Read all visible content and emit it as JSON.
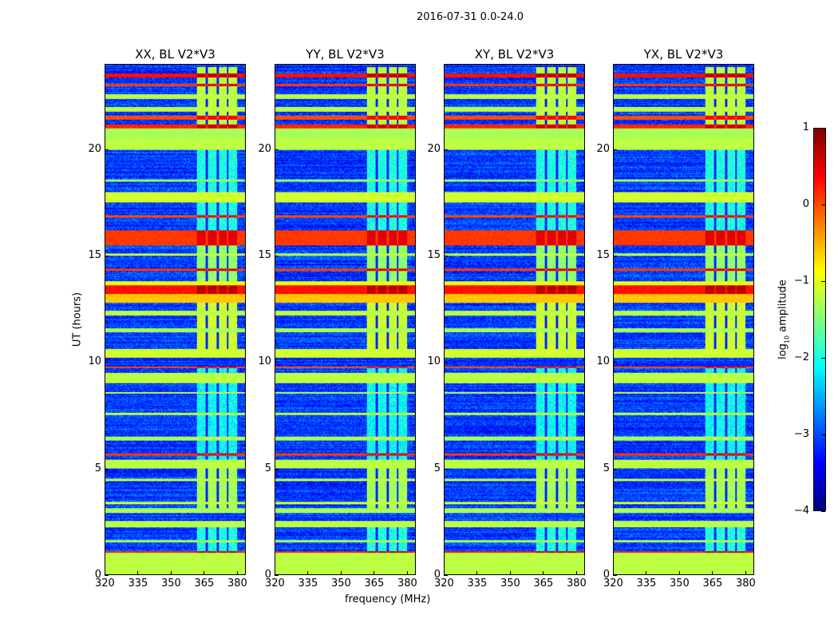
{
  "chart_data": {
    "type": "heatmap",
    "title": "2016-07-31 0.0-24.0",
    "xlabel": "frequency (MHz)",
    "ylabel": "UT (hours)",
    "xlim": [
      320,
      384
    ],
    "ylim": [
      0,
      24
    ],
    "xticks": [
      320,
      335,
      350,
      365,
      380
    ],
    "yticks": [
      0,
      5,
      10,
      15,
      20
    ],
    "panels": [
      {
        "title": "XX, BL V2*V3"
      },
      {
        "title": "YY, BL V2*V3"
      },
      {
        "title": "XY, BL V2*V3"
      },
      {
        "title": "YX, BL V2*V3"
      }
    ],
    "colorbar": {
      "label": "log10 amplitude",
      "label_main": "log",
      "label_sub": "10",
      "label_rest": " amplitude",
      "colormap": "jet",
      "range": [
        -4,
        1
      ],
      "ticks": [
        1,
        0,
        -1,
        -2,
        -3,
        -4
      ],
      "tick_labels": [
        "1",
        "0",
        "−1",
        "−2",
        "−3",
        "−4"
      ]
    },
    "background_level": -3.1,
    "time_bands": [
      {
        "t": [
          0,
          1.0
        ],
        "level": -1.2
      },
      {
        "t": [
          1.0,
          1.1
        ],
        "level": 0.2
      },
      {
        "t": [
          1.5,
          1.6
        ],
        "level": -1.3
      },
      {
        "t": [
          2.2,
          2.5
        ],
        "level": -1.2
      },
      {
        "t": [
          2.9,
          3.1
        ],
        "level": -1.3
      },
      {
        "t": [
          3.3,
          3.4
        ],
        "level": -1.1
      },
      {
        "t": [
          4.4,
          4.5
        ],
        "level": -1.2
      },
      {
        "t": [
          5.0,
          5.4
        ],
        "level": -1.2
      },
      {
        "t": [
          5.6,
          5.7
        ],
        "level": 0.1
      },
      {
        "t": [
          6.3,
          6.5
        ],
        "level": -1.3
      },
      {
        "t": [
          7.5,
          7.6
        ],
        "level": -1.2
      },
      {
        "t": [
          8.5,
          8.6
        ],
        "level": -1.2
      },
      {
        "t": [
          9.0,
          9.5
        ],
        "level": -1.2
      },
      {
        "t": [
          9.7,
          9.8
        ],
        "level": 0.0
      },
      {
        "t": [
          10.2,
          10.6
        ],
        "level": -1.1
      },
      {
        "t": [
          11.4,
          11.6
        ],
        "level": -1.3
      },
      {
        "t": [
          12.2,
          12.4
        ],
        "level": -1.2
      },
      {
        "t": [
          12.8,
          13.2
        ],
        "level": -0.6
      },
      {
        "t": [
          13.2,
          13.6
        ],
        "level": 0.3
      },
      {
        "t": [
          13.6,
          13.8
        ],
        "level": -0.9
      },
      {
        "t": [
          14.3,
          14.4
        ],
        "level": 0.1
      },
      {
        "t": [
          15.0,
          15.1
        ],
        "level": -1.2
      },
      {
        "t": [
          15.5,
          16.2
        ],
        "level": 0.1
      },
      {
        "t": [
          16.8,
          16.9
        ],
        "level": 0.0
      },
      {
        "t": [
          17.5,
          18.0
        ],
        "level": -1.1
      },
      {
        "t": [
          18.5,
          18.6
        ],
        "level": -1.4
      },
      {
        "t": [
          20.0,
          20.5
        ],
        "level": -1.2
      },
      {
        "t": [
          20.5,
          21.0
        ],
        "level": -1.3
      },
      {
        "t": [
          21.0,
          21.2
        ],
        "level": 0.2
      },
      {
        "t": [
          21.4,
          21.6
        ],
        "level": 0.0
      },
      {
        "t": [
          21.8,
          22.0
        ],
        "level": -1.2
      },
      {
        "t": [
          22.4,
          22.6
        ],
        "level": -1.2
      },
      {
        "t": [
          23.0,
          23.1
        ],
        "level": 0.1
      },
      {
        "t": [
          23.4,
          23.6
        ],
        "level": 0.3
      }
    ],
    "freq_block": {
      "f": [
        362,
        380.5
      ],
      "gaps_mhz": [
        366.5,
        371.5,
        376
      ],
      "active_times": [
        {
          "t": [
            1.1,
            2.3
          ],
          "level": -2.0
        },
        {
          "t": [
            3.1,
            5.0
          ],
          "level": -1.3
        },
        {
          "t": [
            5.4,
            9.8
          ],
          "level": -2.1
        },
        {
          "t": [
            10.6,
            12.8
          ],
          "level": -1.1
        },
        {
          "t": [
            13.8,
            15.5
          ],
          "level": -1.4
        },
        {
          "t": [
            16.2,
            20.0
          ],
          "level": -2.0
        },
        {
          "t": [
            21.2,
            23.9
          ],
          "level": -1.2
        }
      ]
    }
  }
}
